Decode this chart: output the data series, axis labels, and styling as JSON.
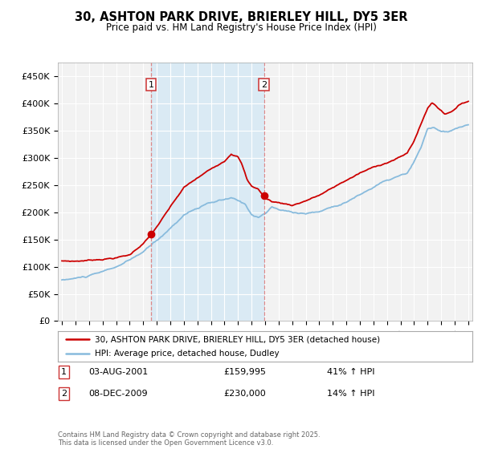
{
  "title": "30, ASHTON PARK DRIVE, BRIERLEY HILL, DY5 3ER",
  "subtitle": "Price paid vs. HM Land Registry's House Price Index (HPI)",
  "legend_line1": "30, ASHTON PARK DRIVE, BRIERLEY HILL, DY5 3ER (detached house)",
  "legend_line2": "HPI: Average price, detached house, Dudley",
  "annotation1_label": "1",
  "annotation1_date": "03-AUG-2001",
  "annotation1_price": "£159,995",
  "annotation1_hpi": "41% ↑ HPI",
  "annotation2_label": "2",
  "annotation2_date": "08-DEC-2009",
  "annotation2_price": "£230,000",
  "annotation2_hpi": "14% ↑ HPI",
  "purchase1_x": 2001.59,
  "purchase1_y": 159995,
  "purchase2_x": 2009.92,
  "purchase2_y": 230000,
  "vline1_x": 2001.59,
  "vline2_x": 2009.92,
  "hpi_color": "#88bbdd",
  "price_color": "#cc0000",
  "vline_color": "#dd8888",
  "shade_color": "#d0e8f5",
  "background_color": "#f0f0f0",
  "plot_bg_color": "#ffffff",
  "footer_text": "Contains HM Land Registry data © Crown copyright and database right 2025.\nThis data is licensed under the Open Government Licence v3.0.",
  "ylim": [
    0,
    475000
  ],
  "yticks": [
    0,
    50000,
    100000,
    150000,
    200000,
    250000,
    300000,
    350000,
    400000,
    450000
  ],
  "ytick_labels": [
    "£0",
    "£50K",
    "£100K",
    "£150K",
    "£200K",
    "£250K",
    "£300K",
    "£350K",
    "£400K",
    "£450K"
  ],
  "xlim": [
    1994.7,
    2025.3
  ]
}
